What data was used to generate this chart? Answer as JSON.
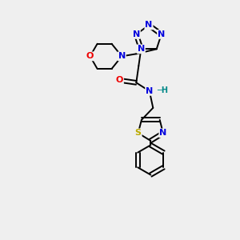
{
  "bg_color": "#efefef",
  "bond_color": "#000000",
  "N_color": "#0000dd",
  "O_color": "#ee0000",
  "S_color": "#bbaa00",
  "H_color": "#008888",
  "line_width": 1.4,
  "dbo": 0.08,
  "xlim": [
    0,
    10
  ],
  "ylim": [
    0,
    10
  ],
  "figsize": [
    3.0,
    3.0
  ],
  "dpi": 100
}
